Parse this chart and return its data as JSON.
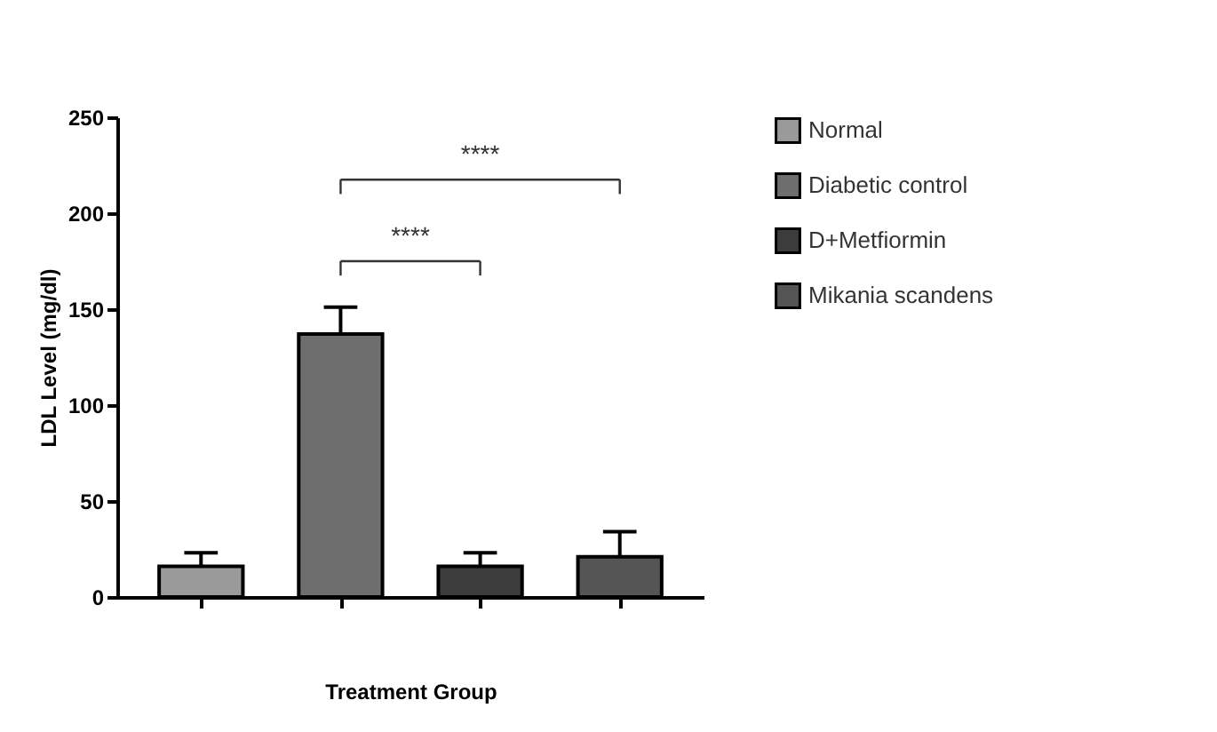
{
  "chart_data": {
    "type": "bar",
    "xlabel": "Treatment Group",
    "ylabel": "LDL Level (mg/dl)",
    "categories": [
      null,
      null,
      null,
      null
    ],
    "series": [
      {
        "name": "Normal",
        "color": "#9a9a9a",
        "values": [
          16,
          null,
          null,
          null
        ],
        "errors": [
          7,
          null,
          null,
          null
        ]
      },
      {
        "name": "Diabetic control",
        "color": "#6e6e6e",
        "values": [
          null,
          137,
          null,
          null
        ],
        "errors": [
          null,
          14,
          null,
          null
        ]
      },
      {
        "name": "D+Metfiormin",
        "color": "#3c3c3c",
        "values": [
          null,
          null,
          16,
          null
        ],
        "errors": [
          null,
          null,
          7,
          null
        ]
      },
      {
        "name": "Mikania scandens",
        "color": "#555555",
        "values": [
          null,
          null,
          null,
          21
        ],
        "errors": [
          null,
          null,
          null,
          13
        ]
      }
    ],
    "ylim": [
      0,
      250
    ],
    "yticks": [
      0,
      50,
      100,
      150,
      200,
      250
    ],
    "grid": false,
    "legend": "top right",
    "annotations": [
      "****",
      "****"
    ]
  }
}
